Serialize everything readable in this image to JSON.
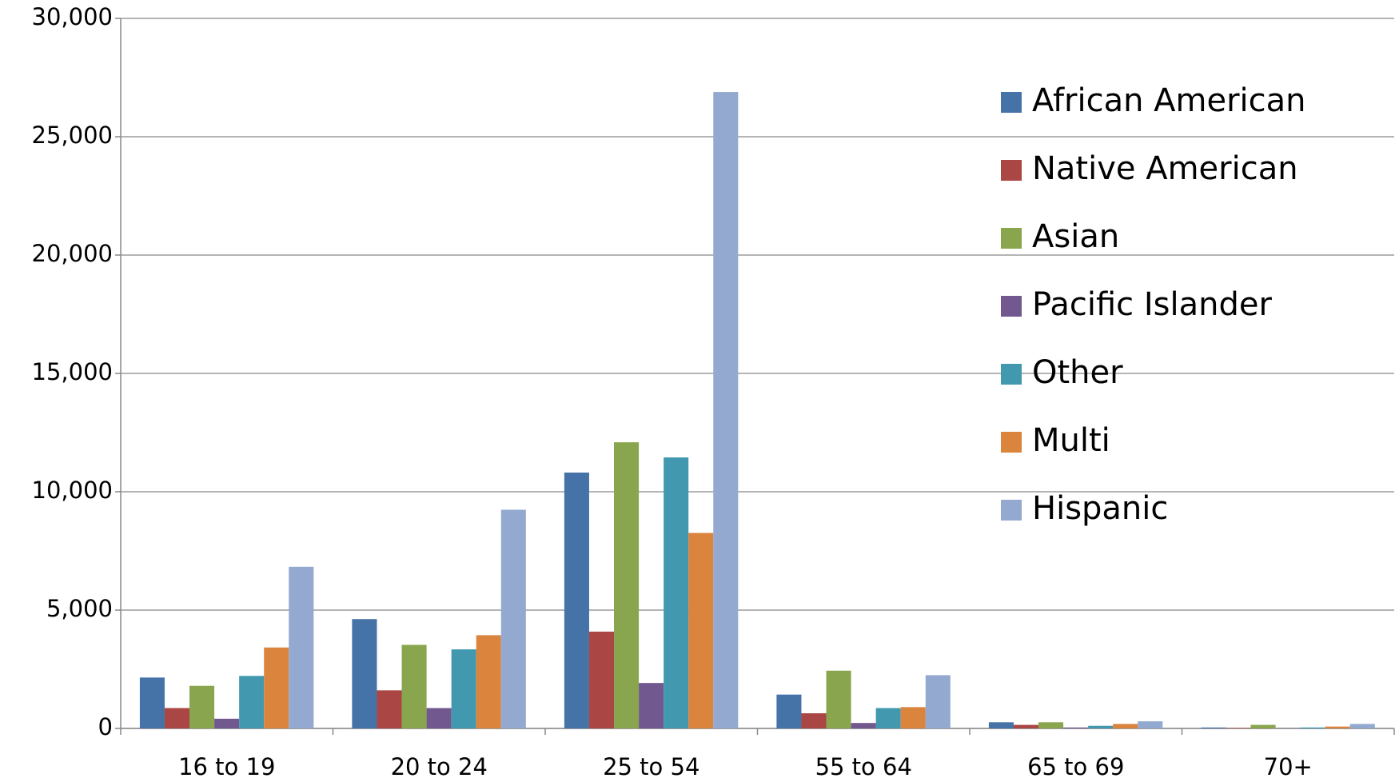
{
  "chart_data": {
    "type": "bar",
    "categories": [
      "16 to 19",
      "20 to 24",
      "25 to 54",
      "55 to 64",
      "65 to 69",
      "70+"
    ],
    "series": [
      {
        "name": "African American",
        "color": "#4572a7",
        "values": [
          2150,
          4620,
          10810,
          1430,
          260,
          40
        ]
      },
      {
        "name": "Native American",
        "color": "#aa4643",
        "values": [
          860,
          1610,
          4090,
          640,
          150,
          20
        ]
      },
      {
        "name": "Asian",
        "color": "#89a54e",
        "values": [
          1800,
          3530,
          12090,
          2440,
          260,
          150
        ]
      },
      {
        "name": "Pacific Islander",
        "color": "#71588f",
        "values": [
          410,
          860,
          1920,
          230,
          40,
          10
        ]
      },
      {
        "name": "Other",
        "color": "#4198af",
        "values": [
          2220,
          3340,
          11450,
          860,
          110,
          40
        ]
      },
      {
        "name": "Multi",
        "color": "#db843d",
        "values": [
          3420,
          3940,
          8260,
          900,
          190,
          80
        ]
      },
      {
        "name": "Hispanic",
        "color": "#93a9cf",
        "values": [
          6830,
          9240,
          26890,
          2250,
          300,
          190
        ]
      }
    ],
    "ylim": [
      0,
      30000
    ],
    "yticks": [
      0,
      {
        "value": 5000,
        "label": "5,000"
      },
      {
        "value": 10000,
        "label": "10,000"
      },
      {
        "value": 15000,
        "label": "15,000"
      },
      {
        "value": 20000,
        "label": "20,000"
      },
      {
        "value": 25000,
        "label": "25,000"
      },
      {
        "value": 30000,
        "label": "30,000"
      }
    ],
    "grid": true,
    "legend": "upper right"
  }
}
